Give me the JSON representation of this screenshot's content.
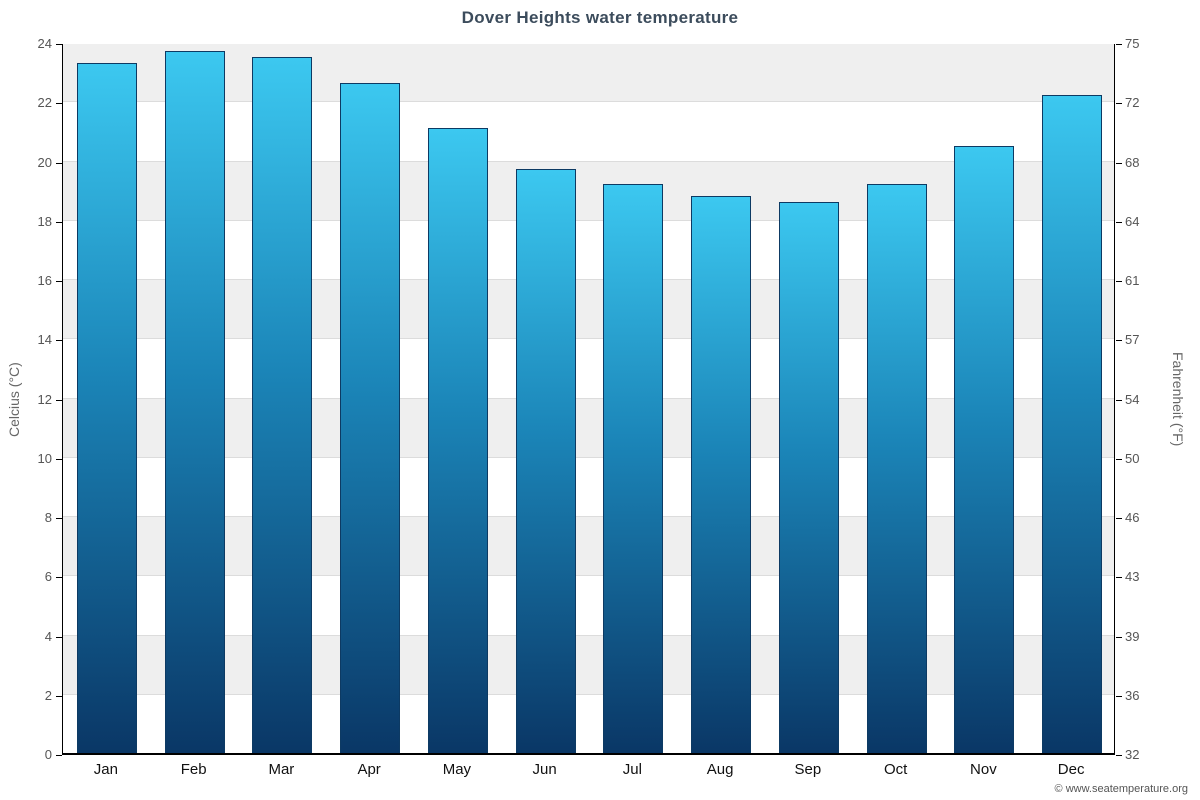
{
  "chart_data": {
    "type": "bar",
    "title": "Dover Heights water temperature",
    "categories": [
      "Jan",
      "Feb",
      "Mar",
      "Apr",
      "May",
      "Jun",
      "Jul",
      "Aug",
      "Sep",
      "Oct",
      "Nov",
      "Dec"
    ],
    "values": [
      23.3,
      23.7,
      23.5,
      22.6,
      21.1,
      19.7,
      19.2,
      18.8,
      18.6,
      19.2,
      20.5,
      22.2
    ],
    "unit": "°C",
    "ylabel_left": "Celcius (°C)",
    "ylabel_right": "Fahrenheit (°F)",
    "ylim": [
      0,
      24
    ],
    "yticks_celsius": [
      "0",
      "2",
      "4",
      "6",
      "8",
      "10",
      "12",
      "14",
      "16",
      "18",
      "20",
      "22",
      "24"
    ],
    "yticks_fahrenheit": [
      "32",
      "36",
      "39",
      "43",
      "46",
      "50",
      "54",
      "57",
      "61",
      "64",
      "68",
      "72",
      "75"
    ],
    "grid": "horizontal-bands",
    "legend": "none"
  },
  "footer": {
    "copyright": "© www.seatemperature.org"
  },
  "colors": {
    "bar_top": "#3cc8f0",
    "bar_mid": "#1b85b8",
    "bar_bottom": "#0a3766",
    "bar_border": "#0d3a63",
    "band_gray": "#efefef",
    "band_white": "#ffffff",
    "title_text": "#3c4c5c",
    "tick_text": "#555555",
    "month_text": "#111111",
    "axis_line": "#000000"
  }
}
